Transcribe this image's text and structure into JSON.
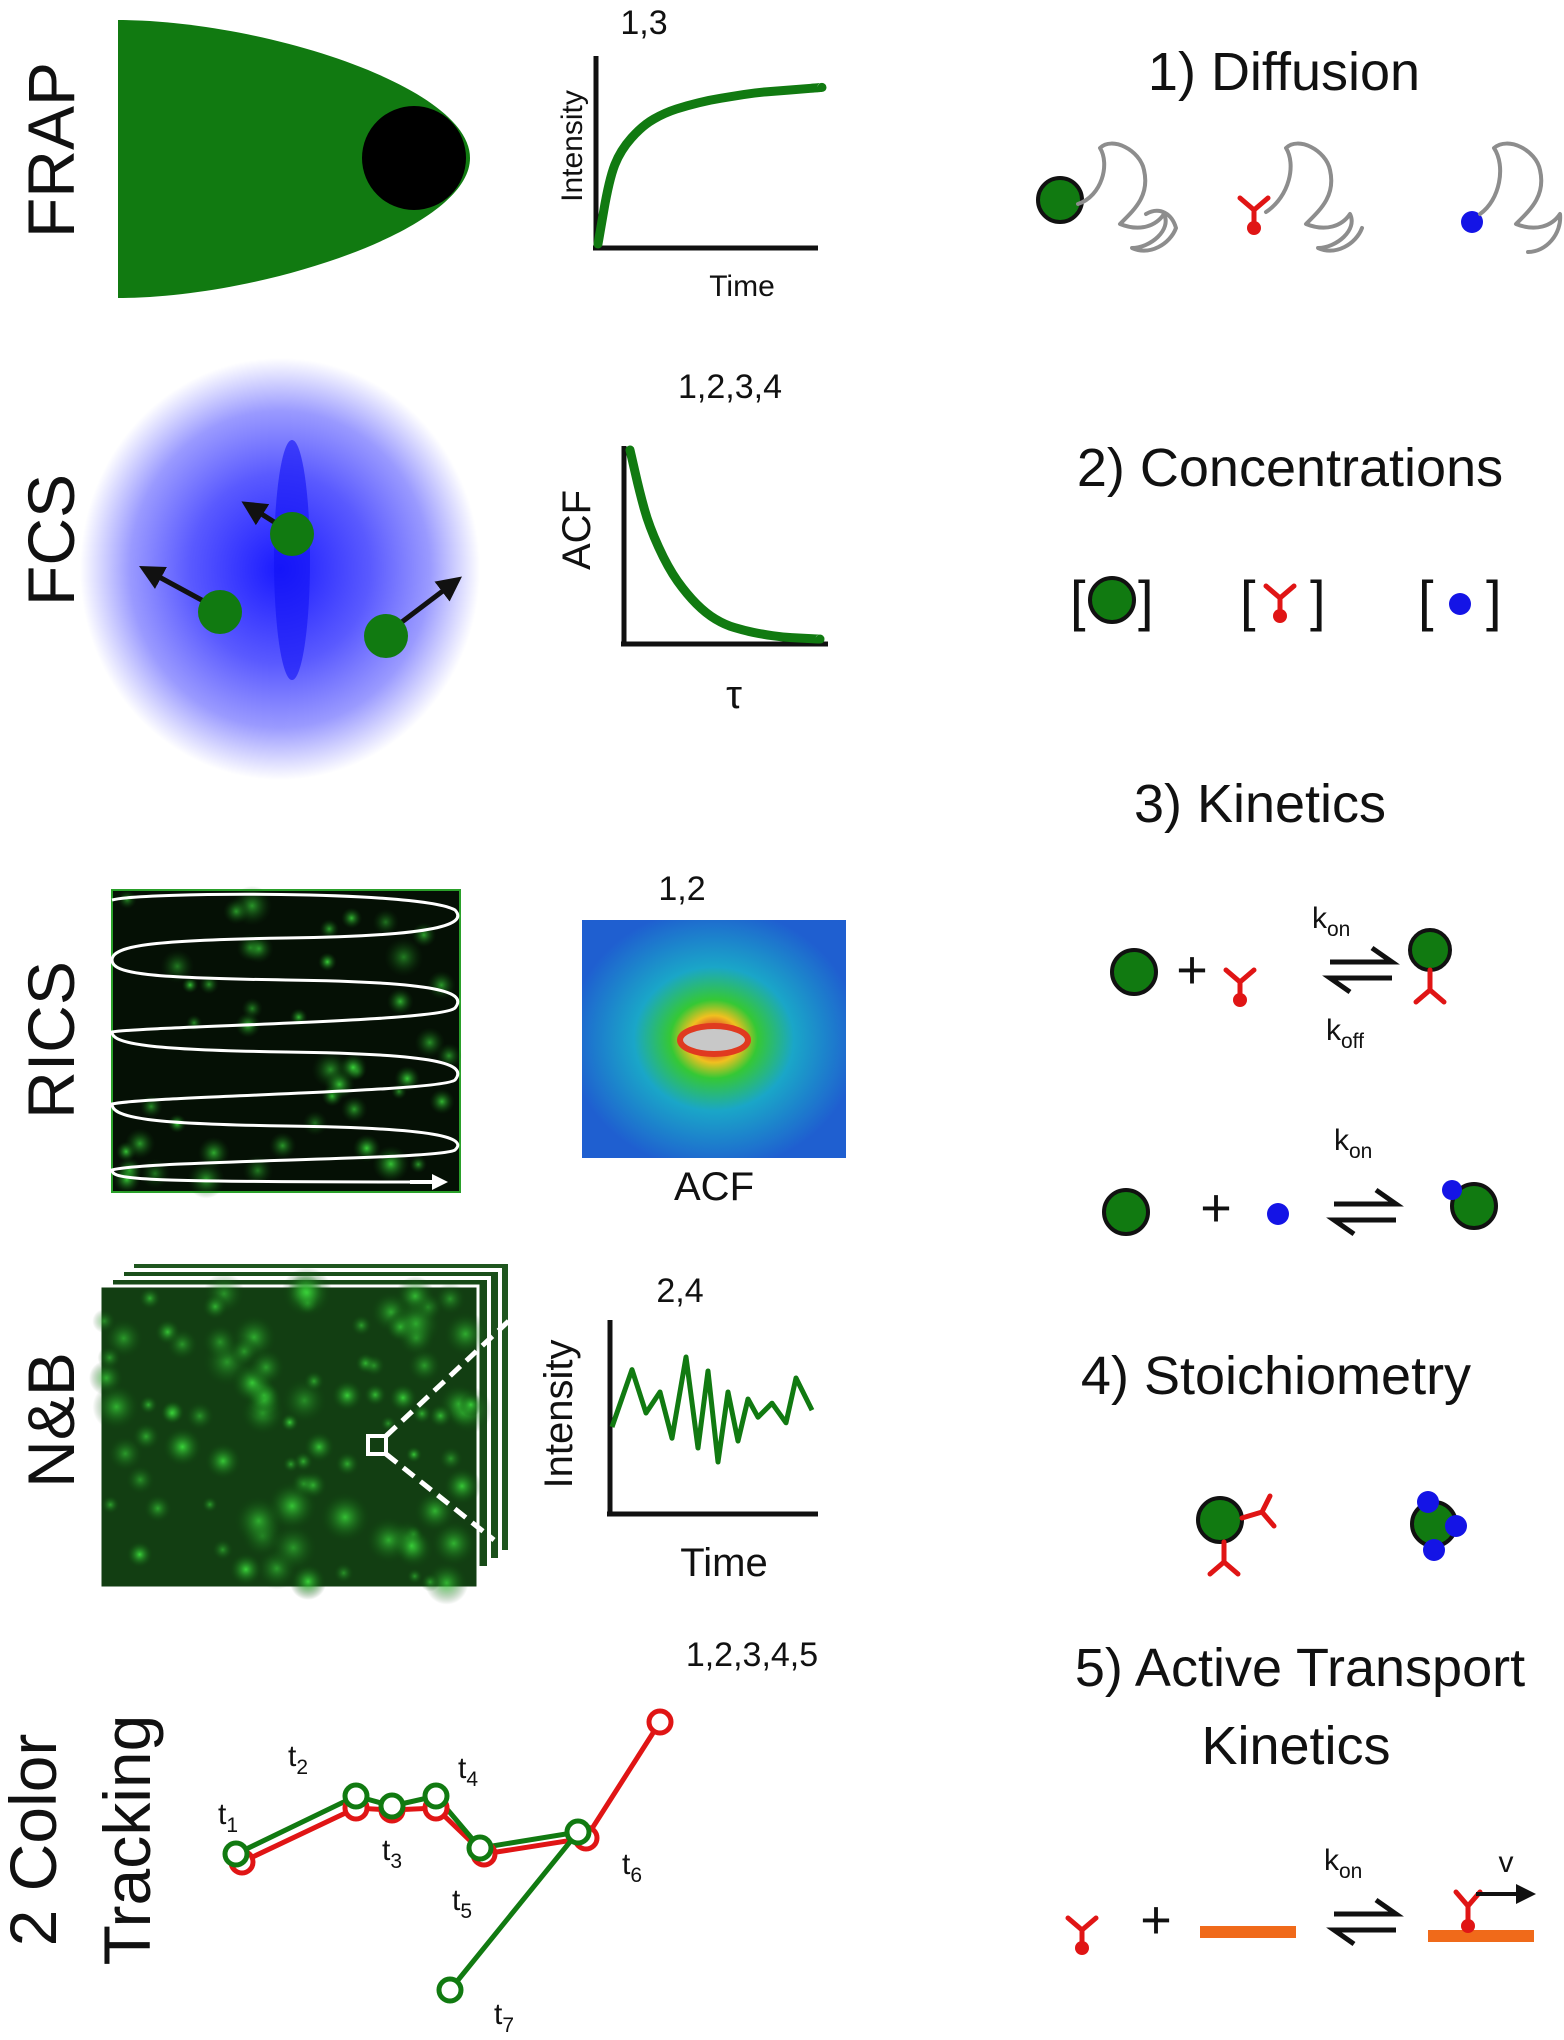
{
  "left_panels": {
    "frap": {
      "label": "FRAP",
      "applies_to": "1,3",
      "ylabel": "Intensity",
      "xlabel": "Time"
    },
    "fcs": {
      "label": "FCS",
      "applies_to": "1,2,3,4",
      "ylabel": "ACF",
      "xlabel": "τ"
    },
    "rics": {
      "label": "RICS",
      "applies_to": "1,2",
      "caption": "ACF"
    },
    "nb": {
      "label": "N&B",
      "applies_to": "2,4",
      "ylabel": "Intensity",
      "xlabel": "Time"
    },
    "tracking": {
      "label_line1": "2 Color",
      "label_line2": "Tracking",
      "applies_to": "1,2,3,4,5",
      "time_labels": [
        {
          "base": "t",
          "sub": "1"
        },
        {
          "base": "t",
          "sub": "2"
        },
        {
          "base": "t",
          "sub": "3"
        },
        {
          "base": "t",
          "sub": "4"
        },
        {
          "base": "t",
          "sub": "5"
        },
        {
          "base": "t",
          "sub": "6"
        },
        {
          "base": "t",
          "sub": "7"
        }
      ]
    }
  },
  "right_panels": {
    "diffusion": {
      "title": "1) Diffusion"
    },
    "concentrations": {
      "title": "2) Concentrations",
      "open_bracket": "[",
      "close_bracket": "]"
    },
    "kinetics": {
      "title": "3) Kinetics",
      "plus": "+",
      "k": "k",
      "on": "on",
      "off": "off"
    },
    "stoichiometry": {
      "title": "4) Stoichiometry"
    },
    "active_transport": {
      "title_line1": "5) Active Transport",
      "title_line2": "Kinetics",
      "velocity": "v"
    }
  },
  "colors": {
    "green": "#117a11",
    "red": "#e01515",
    "blue": "#1414e6",
    "orange": "#f06a1a",
    "grey": "#8d8d8d"
  },
  "chart_data": [
    {
      "type": "line",
      "panel": "FRAP recovery curve",
      "xlabel": "Time",
      "ylabel": "Intensity",
      "x": [
        0,
        0.05,
        0.1,
        0.2,
        0.3,
        0.4,
        0.5,
        0.6,
        0.7,
        0.8,
        0.9,
        1.0
      ],
      "series": [
        {
          "values": [
            0,
            0.36,
            0.52,
            0.66,
            0.73,
            0.77,
            0.8,
            0.82,
            0.84,
            0.85,
            0.86,
            0.87
          ]
        }
      ]
    },
    {
      "type": "line",
      "panel": "FCS autocorrelation",
      "xlabel": "τ",
      "ylabel": "ACF",
      "x": [
        0,
        0.05,
        0.1,
        0.2,
        0.3,
        0.4,
        0.5,
        0.6,
        0.7,
        0.8,
        0.9,
        1.0
      ],
      "series": [
        {
          "values": [
            1.0,
            0.78,
            0.6,
            0.38,
            0.24,
            0.14,
            0.08,
            0.05,
            0.03,
            0.015,
            0.01,
            0.005
          ]
        }
      ]
    },
    {
      "type": "line",
      "panel": "N&B intensity trace",
      "xlabel": "Time",
      "ylabel": "Intensity",
      "x": [
        0,
        0.1,
        0.17,
        0.24,
        0.3,
        0.37,
        0.43,
        0.48,
        0.53,
        0.58,
        0.63,
        0.68,
        0.73,
        0.8,
        0.87,
        0.92,
        1.0
      ],
      "series": [
        {
          "values": [
            0.45,
            0.86,
            0.55,
            0.7,
            0.37,
            0.95,
            0.3,
            0.85,
            0.2,
            0.7,
            0.35,
            0.65,
            0.52,
            0.62,
            0.48,
            0.8,
            0.57
          ]
        }
      ]
    }
  ]
}
